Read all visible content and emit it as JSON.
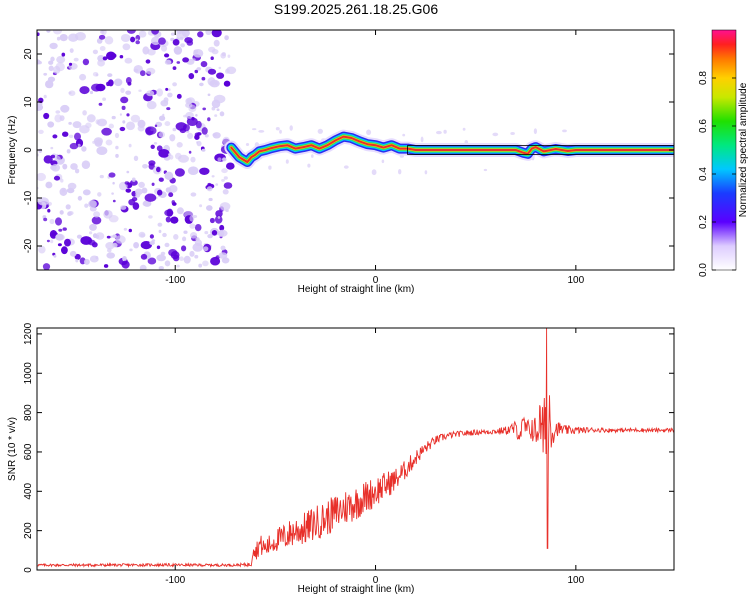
{
  "title": "S199.2025.261.18.25.G06",
  "colors": {
    "snr_line": "#e8302a",
    "speckle_dark": "#5a00d8",
    "speckle_light": "#d8ccf6",
    "track_core": "#e8302a",
    "track_edge": "#00c8ff"
  },
  "chart_data": [
    {
      "id": "spectrogram",
      "type": "heatmap",
      "xlabel": "Height of straight line (km)",
      "ylabel": "Frequency (Hz)",
      "xlim": [
        -169,
        149
      ],
      "ylim": [
        -25,
        25
      ],
      "xticks": [
        -100,
        0,
        100
      ],
      "yticks": [
        -20,
        -10,
        0,
        10,
        20
      ],
      "xtick_labels": [
        "-100",
        "0",
        "100"
      ],
      "ytick_labels": [
        "-20",
        "-10",
        "0",
        "10",
        "20"
      ],
      "noise_region_x": [
        -169,
        -72
      ],
      "track": {
        "x": [
          -72,
          -70,
          -68,
          -66,
          -64,
          -62,
          -60,
          -58,
          -55,
          -52,
          -48,
          -44,
          -40,
          -36,
          -32,
          -28,
          -24,
          -20,
          -16,
          -12,
          -8,
          -4,
          0,
          4,
          8,
          12,
          16,
          20,
          40,
          60,
          70,
          74,
          76,
          78,
          80,
          84,
          90,
          96,
          100,
          105,
          120,
          149
        ],
        "freq": [
          0.5,
          -0.5,
          -1.5,
          -2.0,
          -2.5,
          -1.5,
          -1.0,
          -0.3,
          0.0,
          0.4,
          0.8,
          1.0,
          0.3,
          0.6,
          1.0,
          0.3,
          1.0,
          2.0,
          2.8,
          2.5,
          1.8,
          1.2,
          1.0,
          0.5,
          1.0,
          0.3,
          0.3,
          0.0,
          0.0,
          0.0,
          0.0,
          -0.6,
          -0.8,
          0.3,
          0.6,
          -0.3,
          0.2,
          -0.2,
          0.0,
          0.0,
          0.0,
          0.0
        ]
      },
      "colorbar": {
        "label": "Normalized spectral amplitude",
        "ticks": [
          0.0,
          0.2,
          0.4,
          0.6,
          0.8
        ],
        "tick_labels": [
          "0.0",
          "0.2",
          "0.4",
          "0.6",
          "0.8"
        ],
        "range": [
          0,
          1
        ]
      }
    },
    {
      "id": "snr",
      "type": "line",
      "xlabel": "Height of straight line (km)",
      "ylabel": "SNR (10 * v/v)",
      "xlim": [
        -169,
        149
      ],
      "ylim": [
        0,
        1230
      ],
      "xticks": [
        -100,
        0,
        100
      ],
      "yticks": [
        0,
        200,
        400,
        600,
        800,
        1000,
        1200
      ],
      "xtick_labels": [
        "-100",
        "0",
        "100"
      ],
      "ytick_labels": [
        "0",
        "200",
        "400",
        "600",
        "800",
        "1000",
        "1200"
      ],
      "series": [
        {
          "name": "SNR",
          "x": [
            -169,
            -150,
            -130,
            -110,
            -90,
            -70,
            -62,
            -61,
            -60,
            -58,
            -55,
            -50,
            -45,
            -40,
            -35,
            -30,
            -25,
            -20,
            -15,
            -10,
            -5,
            0,
            5,
            10,
            15,
            20,
            25,
            30,
            35,
            40,
            50,
            60,
            65,
            70,
            72,
            74,
            76,
            78,
            80,
            82,
            84,
            85,
            86,
            87,
            88,
            90,
            95,
            100,
            110,
            120,
            130,
            140,
            149
          ],
          "y": [
            25,
            25,
            25,
            26,
            25,
            25,
            28,
            140,
            90,
            130,
            110,
            150,
            170,
            200,
            210,
            240,
            260,
            290,
            320,
            340,
            370,
            400,
            430,
            460,
            510,
            570,
            620,
            660,
            680,
            690,
            700,
            705,
            710,
            720,
            690,
            740,
            700,
            730,
            690,
            760,
            650,
            900,
            620,
            850,
            700,
            720,
            710,
            710,
            712,
            710,
            712,
            710,
            712
          ],
          "noise": [
            6,
            7,
            7,
            7,
            7,
            7,
            10,
            60,
            45,
            55,
            50,
            60,
            70,
            80,
            85,
            90,
            90,
            95,
            95,
            90,
            85,
            80,
            70,
            60,
            50,
            40,
            30,
            22,
            18,
            15,
            14,
            15,
            20,
            40,
            45,
            55,
            65,
            70,
            90,
            110,
            170,
            300,
            260,
            200,
            90,
            40,
            25,
            18,
            12,
            10,
            10,
            10,
            10
          ]
        }
      ]
    }
  ]
}
